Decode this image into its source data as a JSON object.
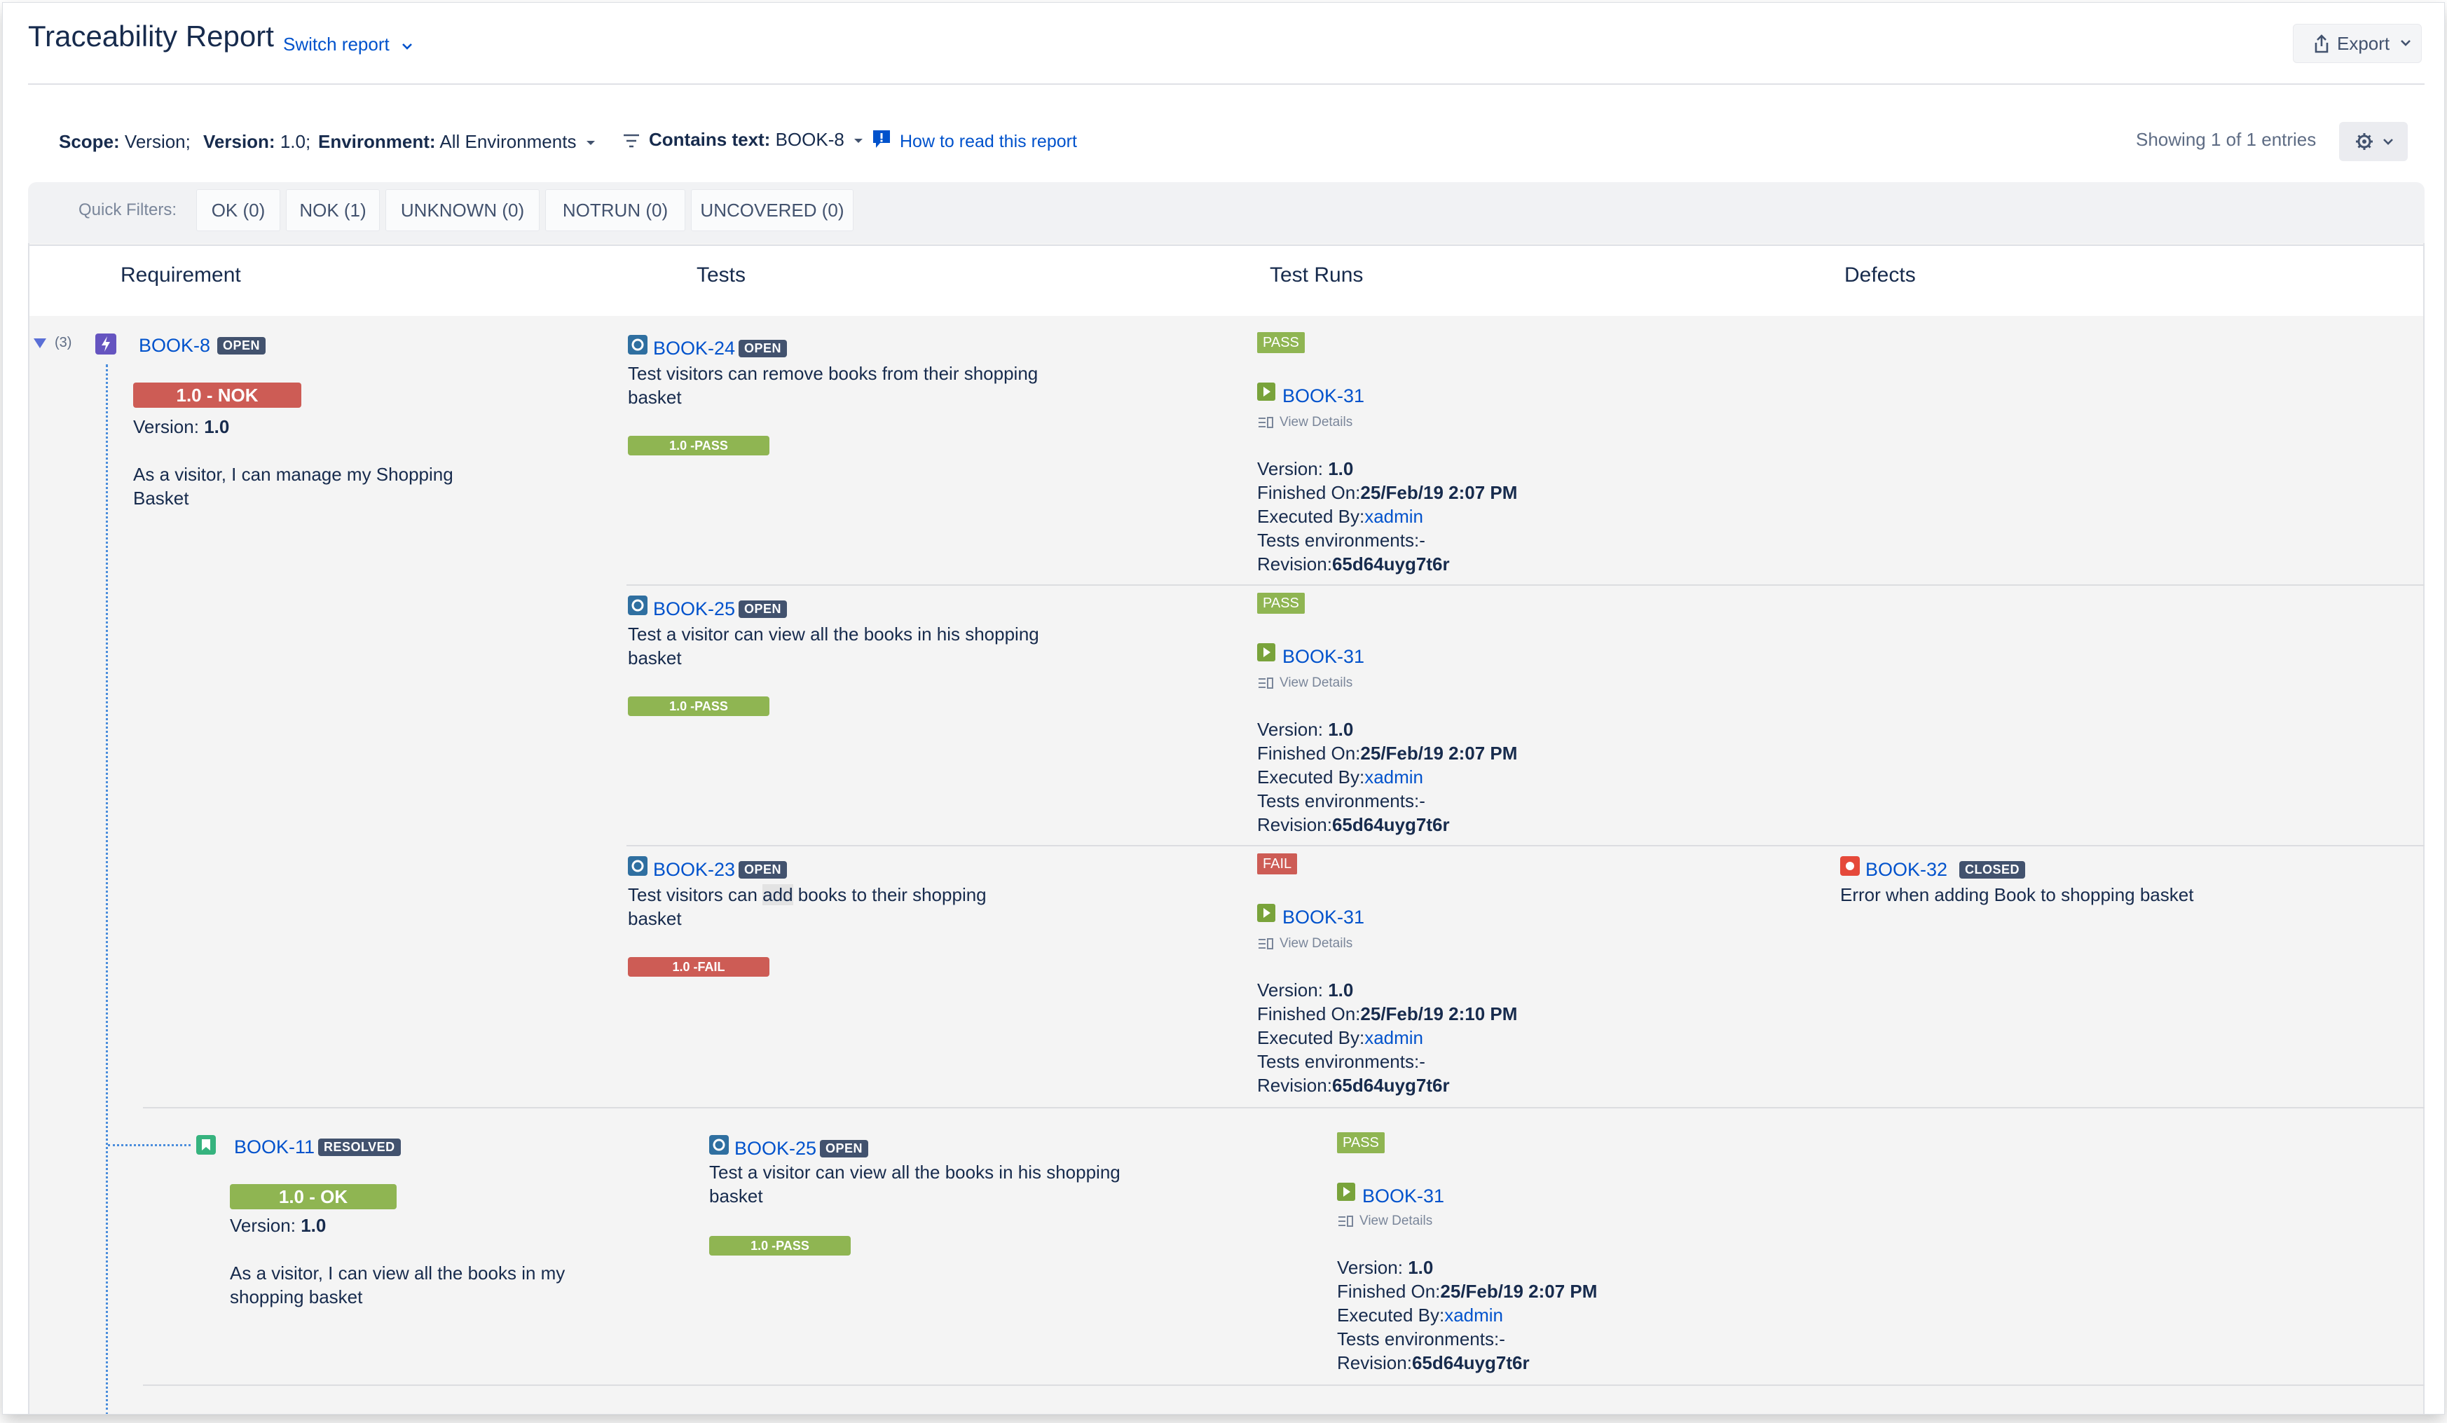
{
  "header": {
    "title": "Traceability Report",
    "switch_report": "Switch report",
    "export": "Export"
  },
  "filters": {
    "scope_label": "Scope:",
    "scope_value": "Version;",
    "version_label": "Version:",
    "version_value": "1.0;",
    "environment_label": "Environment:",
    "environment_value": "All Environments",
    "contains_label": "Contains text:",
    "contains_value": "BOOK-8",
    "how_to_read": "How to read this report",
    "showing": "Showing 1 of 1 entries"
  },
  "quick_filters": {
    "label": "Quick Filters:",
    "items": [
      "OK (0)",
      "NOK (1)",
      "UNKNOWN (0)",
      "NOTRUN (0)",
      "UNCOVERED (0)"
    ]
  },
  "columns": [
    "Requirement",
    "Tests",
    "Test Runs",
    "Defects"
  ],
  "tree_count": "(3)",
  "requirements": [
    {
      "key": "BOOK-8",
      "status": "OPEN",
      "coverage": "1.0 - NOK",
      "version_label": "Version:",
      "version": "1.0",
      "summary_line1": "As a visitor, I can manage my Shopping",
      "summary_line2": "Basket",
      "tests": [
        {
          "key": "BOOK-24",
          "status": "OPEN",
          "summary_line1": "Test visitors can remove books from their shopping",
          "summary_line2": "basket",
          "result_bar": "1.0 -PASS",
          "run": {
            "status": "PASS",
            "key": "BOOK-31",
            "view_details": "View Details",
            "version_label": "Version:",
            "version": "1.0",
            "finished_label": "Finished On:",
            "finished": "25/Feb/19 2:07 PM",
            "executed_label": "Executed By:",
            "executed": "xadmin",
            "envs": "Tests environments:-",
            "revision_label": "Revision:",
            "revision": "65d64uyg7t6r"
          }
        },
        {
          "key": "BOOK-25",
          "status": "OPEN",
          "summary_line1": "Test a visitor can view all the books in his shopping",
          "summary_line2": "basket",
          "result_bar": "1.0 -PASS",
          "run": {
            "status": "PASS",
            "key": "BOOK-31",
            "view_details": "View Details",
            "version_label": "Version:",
            "version": "1.0",
            "finished_label": "Finished On:",
            "finished": "25/Feb/19 2:07 PM",
            "executed_label": "Executed By:",
            "executed": "xadmin",
            "envs": "Tests environments:-",
            "revision_label": "Revision:",
            "revision": "65d64uyg7t6r"
          }
        },
        {
          "key": "BOOK-23",
          "status": "OPEN",
          "summary_pre": "Test visitors can ",
          "summary_highlight": "add",
          "summary_post": " books to their shopping",
          "summary_line2": "basket",
          "result_bar": "1.0 -FAIL",
          "run": {
            "status": "FAIL",
            "key": "BOOK-31",
            "view_details": "View Details",
            "version_label": "Version:",
            "version": "1.0",
            "finished_label": "Finished On:",
            "finished": "25/Feb/19 2:10 PM",
            "executed_label": "Executed By:",
            "executed": "xadmin",
            "envs": "Tests environments:-",
            "revision_label": "Revision:",
            "revision": "65d64uyg7t6r"
          },
          "defect": {
            "key": "BOOK-32",
            "status": "CLOSED",
            "summary": "Error when adding Book to shopping basket"
          }
        }
      ]
    },
    {
      "key": "BOOK-11",
      "status": "RESOLVED",
      "coverage": "1.0 - OK",
      "version_label": "Version:",
      "version": "1.0",
      "summary_line1": "As a visitor, I can view all the books in my",
      "summary_line2": "shopping basket",
      "tests": [
        {
          "key": "BOOK-25",
          "status": "OPEN",
          "summary_line1": "Test a visitor can view all the books in his shopping",
          "summary_line2": "basket",
          "result_bar": "1.0 -PASS",
          "run": {
            "status": "PASS",
            "key": "BOOK-31",
            "view_details": "View Details",
            "version_label": "Version:",
            "version": "1.0",
            "finished_label": "Finished On:",
            "finished": "25/Feb/19 2:07 PM",
            "executed_label": "Executed By:",
            "executed": "xadmin",
            "envs": "Tests environments:-",
            "revision_label": "Revision:",
            "revision": "65d64uyg7t6r"
          }
        }
      ]
    }
  ],
  "colors": {
    "link": "#0052cc",
    "ok": "#8fb552",
    "nok": "#cd5c55",
    "lozenge": "#42526e",
    "tree_line": "#4a8ddc"
  }
}
